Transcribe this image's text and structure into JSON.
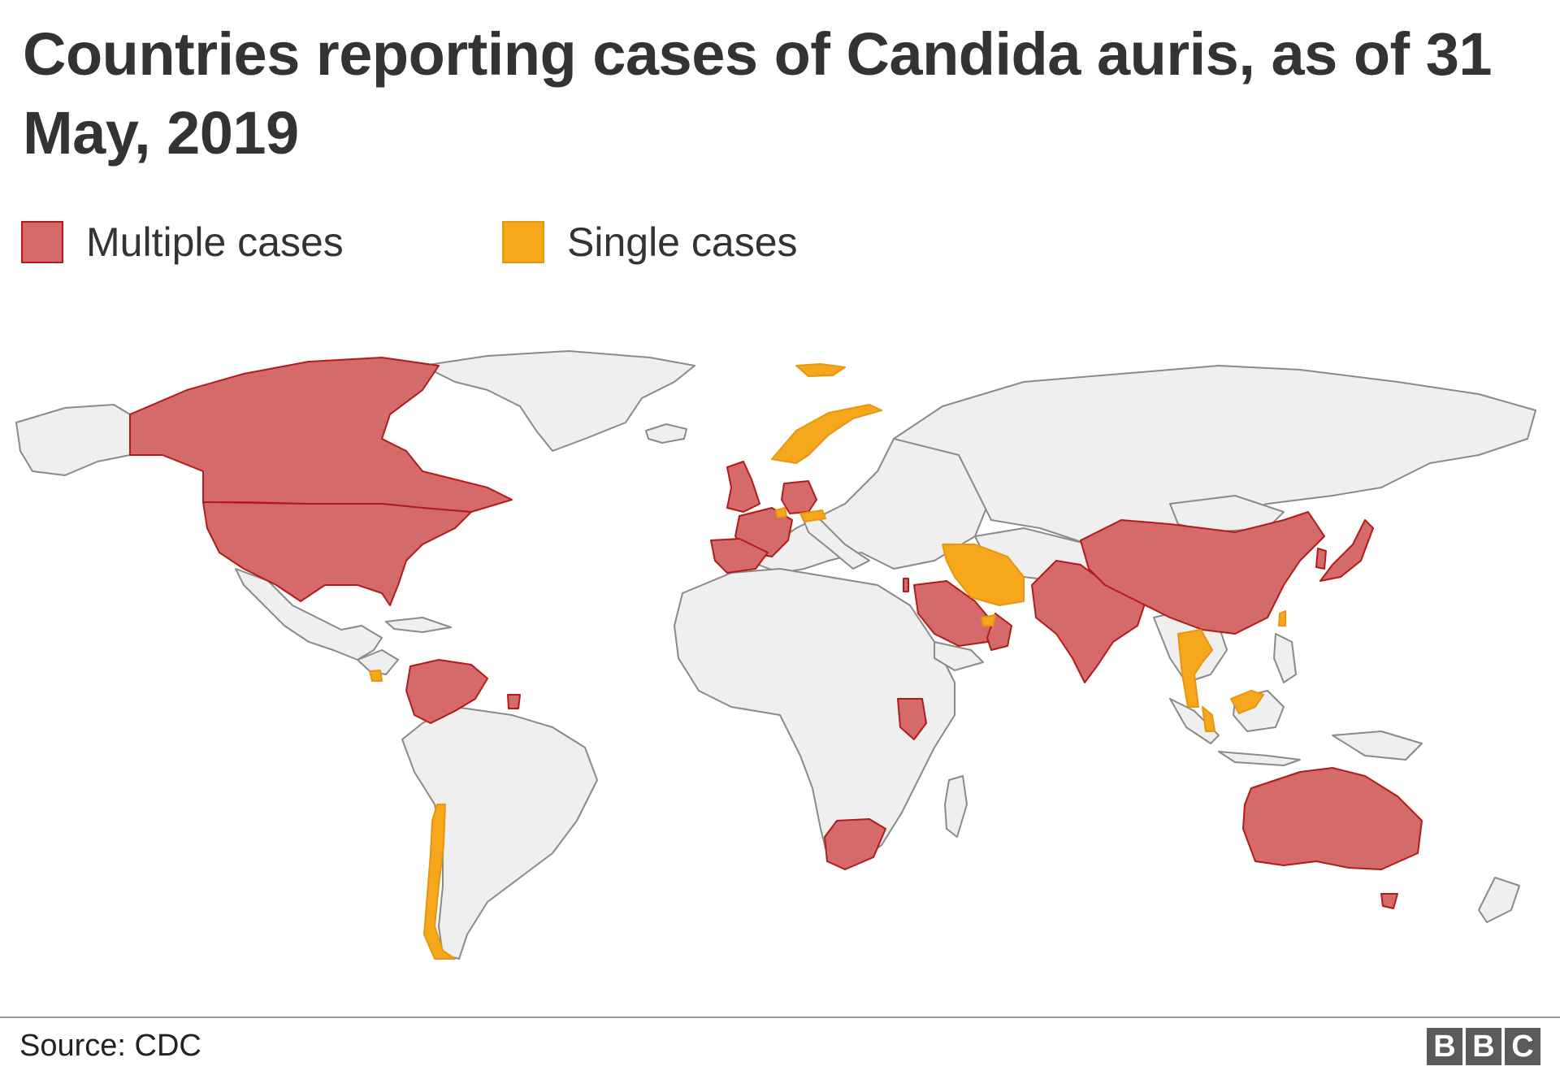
{
  "title": "Countries reporting cases of Candida auris, as of 31 May, 2019",
  "legend": [
    {
      "label": "Multiple cases",
      "fill": "#d46a6a",
      "stroke": "#b31b1b"
    },
    {
      "label": "Single cases",
      "fill": "#f5a81c",
      "stroke": "#e8950f"
    }
  ],
  "colors": {
    "multiple_fill": "#d46a6a",
    "multiple_stroke": "#b31b1b",
    "single_fill": "#f5a81c",
    "single_stroke": "#e8950f",
    "land_fill": "#efefef",
    "land_stroke": "#8a8a8a"
  },
  "regions": {
    "multiple": [
      "Canada",
      "United States",
      "Colombia",
      "Venezuela",
      "Panama",
      "French Guiana",
      "United Kingdom",
      "Spain",
      "France",
      "Germany",
      "Israel",
      "Saudi Arabia",
      "Oman",
      "Pakistan",
      "India",
      "China",
      "Japan",
      "South Korea",
      "Kenya",
      "South Africa",
      "Australia"
    ],
    "single": [
      "Norway",
      "Austria",
      "Belgium",
      "Iran",
      "United Arab Emirates",
      "Costa Rica",
      "Chile",
      "Thailand",
      "Malaysia",
      "Taiwan"
    ]
  },
  "source": "Source: CDC",
  "logo": [
    "B",
    "B",
    "C"
  ]
}
